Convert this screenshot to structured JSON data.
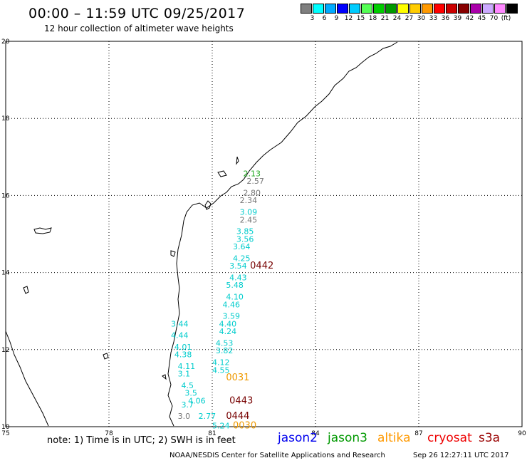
{
  "header": {
    "title": "00:00 – 11:59 UTC 09/25/2017",
    "subtitle": "12 hour collection of altimeter wave heights"
  },
  "color_scale": {
    "swatches": [
      "#7f7f7f",
      "#00ffff",
      "#00aaff",
      "#0000ff",
      "#00ccff",
      "#55ff55",
      "#00cc00",
      "#009900",
      "#ffff00",
      "#ffcc00",
      "#ff9900",
      "#ff0000",
      "#cc0000",
      "#880000",
      "#aa00aa",
      "#ccaaff",
      "#ff88ff",
      "#000000"
    ],
    "labels": [
      "3",
      "6",
      "9",
      "12",
      "15",
      "18",
      "21",
      "24",
      "27",
      "30",
      "33",
      "36",
      "39",
      "42",
      "45",
      "70",
      "(ft)"
    ]
  },
  "axes": {
    "x_ticks": [
      "75",
      "78",
      "81",
      "84",
      "87",
      "90"
    ],
    "y_ticks": [
      "20",
      "18",
      "16",
      "14",
      "12",
      "10"
    ]
  },
  "track_labels": [
    {
      "text": "2.13",
      "color": "#22aa22",
      "lon": 81.9,
      "lat": 16.5
    },
    {
      "text": "2.57",
      "color": "#777777",
      "lon": 82.0,
      "lat": 16.3
    },
    {
      "text": "2.80",
      "color": "#777777",
      "lon": 81.9,
      "lat": 16.0
    },
    {
      "text": "2.34",
      "color": "#777777",
      "lon": 81.8,
      "lat": 15.8
    },
    {
      "text": "3.09",
      "color": "#00cccc",
      "lon": 81.8,
      "lat": 15.5
    },
    {
      "text": "2.45",
      "color": "#777777",
      "lon": 81.8,
      "lat": 15.3
    },
    {
      "text": "3.85",
      "color": "#00cccc",
      "lon": 81.7,
      "lat": 15.0
    },
    {
      "text": "3.56",
      "color": "#00cccc",
      "lon": 81.7,
      "lat": 14.8
    },
    {
      "text": "3.64",
      "color": "#00cccc",
      "lon": 81.6,
      "lat": 14.6
    },
    {
      "text": "4.25",
      "color": "#00cccc",
      "lon": 81.6,
      "lat": 14.3
    },
    {
      "text": "3.54",
      "color": "#00cccc",
      "lon": 81.5,
      "lat": 14.1
    },
    {
      "text": "4.43",
      "color": "#00cccc",
      "lon": 81.5,
      "lat": 13.8
    },
    {
      "text": "5.48",
      "color": "#00cccc",
      "lon": 81.4,
      "lat": 13.6
    },
    {
      "text": "4.10",
      "color": "#00cccc",
      "lon": 81.4,
      "lat": 13.3
    },
    {
      "text": "4.46",
      "color": "#00cccc",
      "lon": 81.3,
      "lat": 13.1
    },
    {
      "text": "3.59",
      "color": "#00cccc",
      "lon": 81.3,
      "lat": 12.8
    },
    {
      "text": "4.40",
      "color": "#00cccc",
      "lon": 81.2,
      "lat": 12.6
    },
    {
      "text": "4.24",
      "color": "#00cccc",
      "lon": 81.2,
      "lat": 12.4
    },
    {
      "text": "4.53",
      "color": "#00cccc",
      "lon": 81.1,
      "lat": 12.1
    },
    {
      "text": "3.82",
      "color": "#00cccc",
      "lon": 81.1,
      "lat": 11.9
    },
    {
      "text": "4.12",
      "color": "#00cccc",
      "lon": 81.0,
      "lat": 11.6
    },
    {
      "text": "4.55",
      "color": "#00cccc",
      "lon": 81.0,
      "lat": 11.4
    },
    {
      "text": "3.44",
      "color": "#00cccc",
      "lon": 79.8,
      "lat": 12.6
    },
    {
      "text": "4.44",
      "color": "#00cccc",
      "lon": 79.8,
      "lat": 12.3
    },
    {
      "text": "4.01",
      "color": "#00cccc",
      "lon": 79.9,
      "lat": 12.0
    },
    {
      "text": "4.38",
      "color": "#00cccc",
      "lon": 79.9,
      "lat": 11.8
    },
    {
      "text": "4.11",
      "color": "#00cccc",
      "lon": 80.0,
      "lat": 11.5
    },
    {
      "text": "3.1",
      "color": "#00cccc",
      "lon": 80.0,
      "lat": 11.3
    },
    {
      "text": "4.5",
      "color": "#00cccc",
      "lon": 80.1,
      "lat": 11.0
    },
    {
      "text": "3.5",
      "color": "#00cccc",
      "lon": 80.2,
      "lat": 10.8
    },
    {
      "text": "4.06",
      "color": "#00cccc",
      "lon": 80.3,
      "lat": 10.6
    },
    {
      "text": "3.7",
      "color": "#00cccc",
      "lon": 80.1,
      "lat": 10.5
    },
    {
      "text": "3.0",
      "color": "#777777",
      "lon": 80.0,
      "lat": 10.2
    },
    {
      "text": "2.77",
      "color": "#00cccc",
      "lon": 80.6,
      "lat": 10.2
    },
    {
      "text": "5.24",
      "color": "#00cccc",
      "lon": 81.0,
      "lat": 9.95
    }
  ],
  "time_labels": [
    {
      "text": "0442",
      "color": "#770000",
      "lon": 82.1,
      "lat": 14.1
    },
    {
      "text": "0031",
      "color": "#ee9900",
      "lon": 81.4,
      "lat": 11.2
    },
    {
      "text": "0443",
      "color": "#770000",
      "lon": 81.5,
      "lat": 10.6
    },
    {
      "text": "0444",
      "color": "#770000",
      "lon": 81.4,
      "lat": 10.2
    },
    {
      "text": "0030",
      "color": "#ee9900",
      "lon": 81.6,
      "lat": 9.95
    }
  ],
  "footer": {
    "note": "note:  1) Time is in UTC;  2) SWH is in feet",
    "legend": [
      {
        "name": "jason2",
        "color": "#0000ee"
      },
      {
        "name": "jason3",
        "color": "#009900"
      },
      {
        "name": "altika",
        "color": "#ff9900"
      },
      {
        "name": "cryosat",
        "color": "#ee0000"
      },
      {
        "name": "s3a",
        "color": "#990000"
      }
    ],
    "credit": "NOAA/NESDIS Center for Satellite Applications and Research",
    "timestamp": "Sep 26 12:27:11 UTC 2017"
  }
}
